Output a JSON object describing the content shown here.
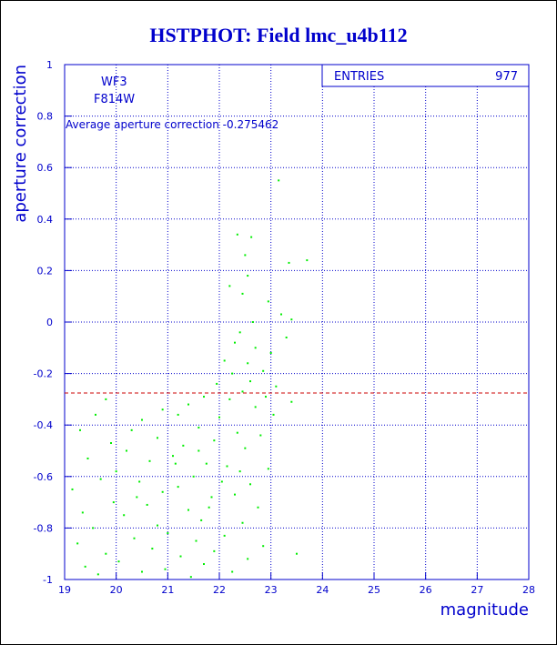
{
  "title": "HSTPHOT: Field lmc_u4b112",
  "stats_box": {
    "label": "ENTRIES",
    "value": "977"
  },
  "annotations": {
    "camera": "WF3",
    "filter": "F814W",
    "average_text": "Average aperture correction -0.275462"
  },
  "colors": {
    "axis": "#0000cc",
    "points": "#00ee00",
    "reference_line": "#cc0000",
    "title": "#0000cc"
  },
  "chart_data": {
    "type": "scatter",
    "title": "HSTPHOT: Field lmc_u4b112",
    "xlabel": "magnitude",
    "ylabel": "aperture correction",
    "xlim": [
      19,
      28
    ],
    "ylim": [
      -1,
      1
    ],
    "x_ticks": [
      19,
      20,
      21,
      22,
      23,
      24,
      25,
      26,
      27,
      28
    ],
    "y_ticks": [
      -1,
      -0.8,
      -0.6,
      -0.4,
      -0.2,
      0,
      0.2,
      0.4,
      0.6,
      0.8,
      1
    ],
    "grid": true,
    "entries": 977,
    "reference_line_y": -0.275462,
    "points": [
      [
        23.15,
        0.55
      ],
      [
        22.35,
        0.34
      ],
      [
        22.62,
        0.33
      ],
      [
        22.5,
        0.26
      ],
      [
        23.7,
        0.24
      ],
      [
        23.35,
        0.23
      ],
      [
        22.55,
        0.18
      ],
      [
        22.2,
        0.14
      ],
      [
        22.45,
        0.11
      ],
      [
        22.95,
        0.08
      ],
      [
        23.2,
        0.03
      ],
      [
        23.4,
        0.01
      ],
      [
        22.65,
        0.0
      ],
      [
        22.4,
        -0.04
      ],
      [
        22.3,
        -0.08
      ],
      [
        22.7,
        -0.1
      ],
      [
        23.0,
        -0.12
      ],
      [
        23.3,
        -0.06
      ],
      [
        22.1,
        -0.15
      ],
      [
        22.55,
        -0.16
      ],
      [
        22.85,
        -0.19
      ],
      [
        22.25,
        -0.2
      ],
      [
        22.6,
        -0.23
      ],
      [
        23.1,
        -0.25
      ],
      [
        21.95,
        -0.24
      ],
      [
        22.45,
        -0.27
      ],
      [
        22.9,
        -0.29
      ],
      [
        23.4,
        -0.31
      ],
      [
        22.2,
        -0.3
      ],
      [
        21.7,
        -0.29
      ],
      [
        21.4,
        -0.32
      ],
      [
        22.7,
        -0.33
      ],
      [
        23.05,
        -0.36
      ],
      [
        21.2,
        -0.36
      ],
      [
        20.9,
        -0.34
      ],
      [
        22.0,
        -0.37
      ],
      [
        20.5,
        -0.38
      ],
      [
        19.6,
        -0.36
      ],
      [
        19.8,
        -0.3
      ],
      [
        20.3,
        -0.42
      ],
      [
        19.3,
        -0.42
      ],
      [
        21.6,
        -0.41
      ],
      [
        22.35,
        -0.43
      ],
      [
        22.8,
        -0.44
      ],
      [
        20.8,
        -0.45
      ],
      [
        21.9,
        -0.46
      ],
      [
        19.9,
        -0.47
      ],
      [
        21.3,
        -0.48
      ],
      [
        22.5,
        -0.49
      ],
      [
        20.2,
        -0.5
      ],
      [
        21.1,
        -0.52
      ],
      [
        19.45,
        -0.53
      ],
      [
        20.65,
        -0.54
      ],
      [
        21.75,
        -0.55
      ],
      [
        22.15,
        -0.56
      ],
      [
        22.95,
        -0.57
      ],
      [
        20.0,
        -0.58
      ],
      [
        21.5,
        -0.6
      ],
      [
        19.7,
        -0.61
      ],
      [
        20.45,
        -0.62
      ],
      [
        22.6,
        -0.63
      ],
      [
        21.2,
        -0.64
      ],
      [
        19.15,
        -0.65
      ],
      [
        20.9,
        -0.66
      ],
      [
        22.3,
        -0.67
      ],
      [
        21.85,
        -0.68
      ],
      [
        19.95,
        -0.7
      ],
      [
        20.6,
        -0.71
      ],
      [
        22.75,
        -0.72
      ],
      [
        21.4,
        -0.73
      ],
      [
        19.35,
        -0.74
      ],
      [
        20.15,
        -0.75
      ],
      [
        21.65,
        -0.77
      ],
      [
        22.45,
        -0.78
      ],
      [
        20.8,
        -0.79
      ],
      [
        19.55,
        -0.8
      ],
      [
        21.0,
        -0.82
      ],
      [
        22.1,
        -0.83
      ],
      [
        20.35,
        -0.84
      ],
      [
        21.55,
        -0.85
      ],
      [
        19.25,
        -0.86
      ],
      [
        22.85,
        -0.87
      ],
      [
        20.7,
        -0.88
      ],
      [
        21.9,
        -0.89
      ],
      [
        19.8,
        -0.9
      ],
      [
        21.25,
        -0.91
      ],
      [
        22.55,
        -0.92
      ],
      [
        20.05,
        -0.93
      ],
      [
        21.7,
        -0.94
      ],
      [
        19.4,
        -0.95
      ],
      [
        20.95,
        -0.96
      ],
      [
        22.25,
        -0.97
      ],
      [
        23.5,
        -0.9
      ],
      [
        19.65,
        -0.98
      ],
      [
        21.45,
        -0.99
      ],
      [
        20.5,
        -0.97
      ],
      [
        21.15,
        -0.55
      ],
      [
        21.6,
        -0.5
      ],
      [
        22.05,
        -0.62
      ],
      [
        20.4,
        -0.68
      ],
      [
        21.8,
        -0.72
      ],
      [
        22.4,
        -0.58
      ]
    ]
  }
}
